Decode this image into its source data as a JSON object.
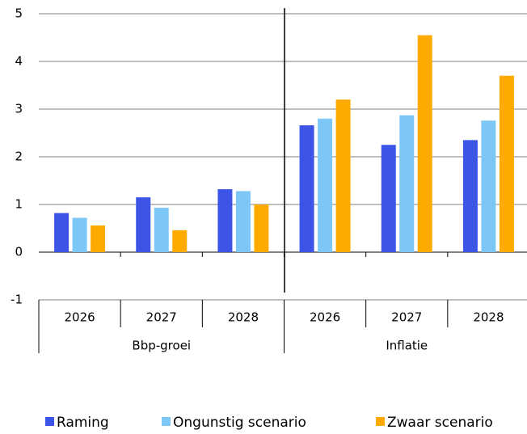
{
  "chart_data": {
    "type": "bar",
    "categories": [
      "2026",
      "2027",
      "2028",
      "2026",
      "2027",
      "2028"
    ],
    "groups": [
      "Bbp-groei",
      "Inflatie"
    ],
    "series": [
      {
        "name": "Raming",
        "color": "#3c55e6",
        "values": [
          0.82,
          1.15,
          1.32,
          2.66,
          2.25,
          2.35
        ]
      },
      {
        "name": "Ongunstig scenario",
        "color": "#7dc7f7",
        "values": [
          0.72,
          0.93,
          1.28,
          2.8,
          2.87,
          2.76
        ]
      },
      {
        "name": "Zwaar scenario",
        "color": "#ffaa00",
        "values": [
          0.56,
          0.46,
          1.0,
          3.2,
          4.55,
          3.7
        ]
      }
    ],
    "ylim": [
      -1,
      5
    ],
    "yticks": [
      -1,
      0,
      1,
      2,
      3,
      4,
      5
    ],
    "grid": true,
    "legend": "bottom"
  }
}
